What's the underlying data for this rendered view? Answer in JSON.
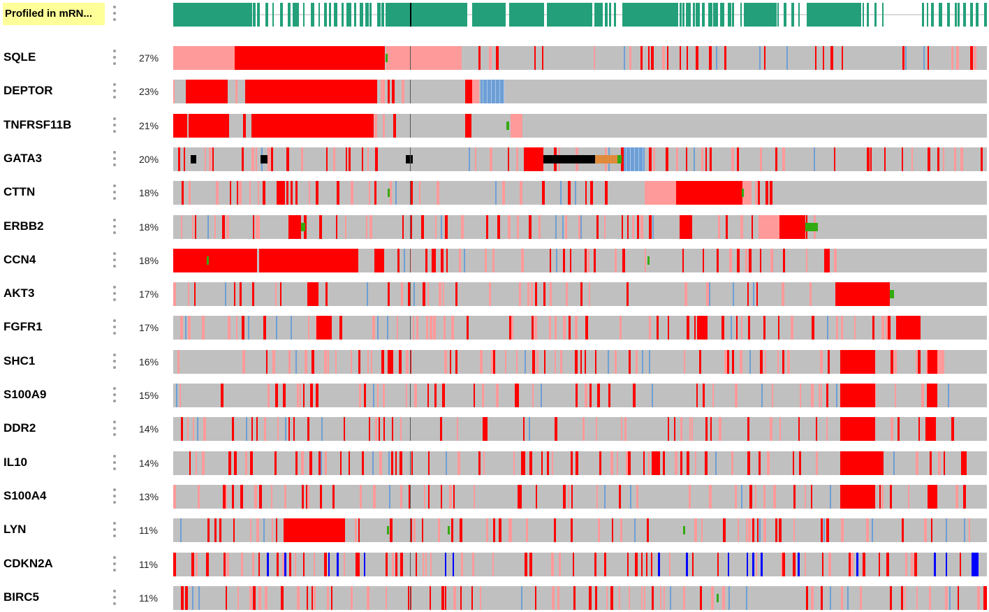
{
  "profile_track": {
    "label": "Profiled in mRN...",
    "color": "#23a07a",
    "gap_line_color": "#b5b5b5"
  },
  "colors": {
    "track_bg": "#c0c0c0",
    "amp": "#ff0000",
    "mrna_high": "#ff9a9a",
    "deep_del": "#0000ff",
    "mrna_low": "#6d9fd6",
    "mutation": "#000000",
    "missense": "#33aa11",
    "fusion": "#e08a3c"
  },
  "chart_data": {
    "type": "oncoprint",
    "genes": [
      {
        "name": "SQLE",
        "percent": "27%"
      },
      {
        "name": "DEPTOR",
        "percent": "23%"
      },
      {
        "name": "TNFRSF11B",
        "percent": "21%"
      },
      {
        "name": "GATA3",
        "percent": "20%"
      },
      {
        "name": "CTTN",
        "percent": "18%"
      },
      {
        "name": "ERBB2",
        "percent": "18%"
      },
      {
        "name": "CCN4",
        "percent": "18%"
      },
      {
        "name": "AKT3",
        "percent": "17%"
      },
      {
        "name": "FGFR1",
        "percent": "17%"
      },
      {
        "name": "SHC1",
        "percent": "16%"
      },
      {
        "name": "S100A9",
        "percent": "15%"
      },
      {
        "name": "DDR2",
        "percent": "14%"
      },
      {
        "name": "IL10",
        "percent": "14%"
      },
      {
        "name": "S100A4",
        "percent": "13%"
      },
      {
        "name": "LYN",
        "percent": "11%"
      },
      {
        "name": "CDKN2A",
        "percent": "11%"
      },
      {
        "name": "BIRC5",
        "percent": "11%"
      }
    ]
  }
}
